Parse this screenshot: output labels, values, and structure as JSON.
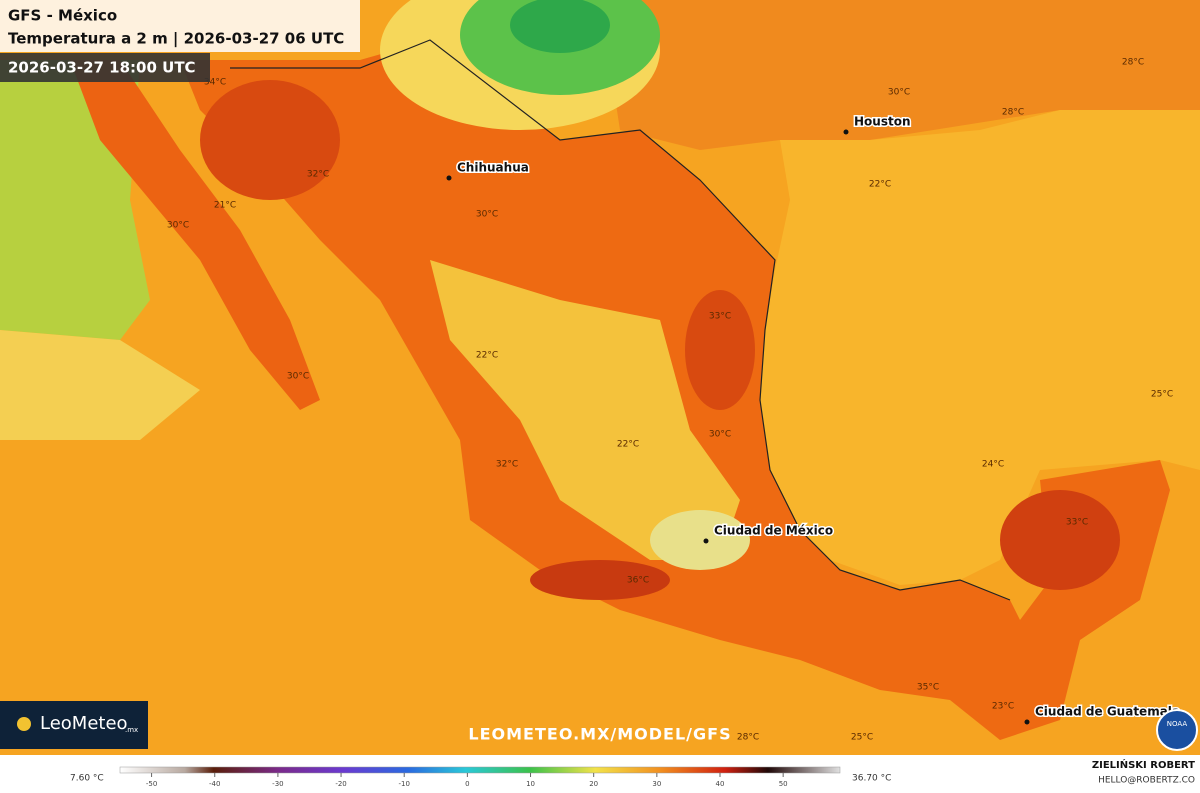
{
  "header": {
    "title": "GFS - México",
    "subtitle": "Temperatura a 2 m | 2026-03-27 06 UTC",
    "valid_time": "2026-03-27 18:00 UTC"
  },
  "map": {
    "cities": [
      "Chihuahua",
      "Houston",
      "Ciudad de México",
      "Ciudad de Guatemala"
    ],
    "temperature_labels": [
      "34°C",
      "32°C",
      "21°C",
      "30°C",
      "30°C",
      "22°C",
      "30°C",
      "33°C",
      "22°C",
      "30°C",
      "32°C",
      "36°C",
      "22°C",
      "30°C",
      "28°C",
      "28°C",
      "25°C",
      "24°C",
      "33°C",
      "35°C",
      "23°C",
      "28°C",
      "25°C"
    ]
  },
  "watermark": "LEOMETEO.MX/MODEL/GFS",
  "logo": {
    "text": "LeoMeteo",
    "suffix": ".mx"
  },
  "colorbar": {
    "min_label": "7.60 °C",
    "max_label": "36.70 °C",
    "lim": [
      -55,
      59
    ],
    "ticks": [
      -50,
      -40,
      -30,
      -20,
      -10,
      0,
      10,
      20,
      30,
      40,
      50
    ]
  },
  "credit": {
    "name": "ZIELIŃSKI ROBERT",
    "email": "HELLO@ROBERTZ.CO"
  },
  "badge": "NOAA"
}
